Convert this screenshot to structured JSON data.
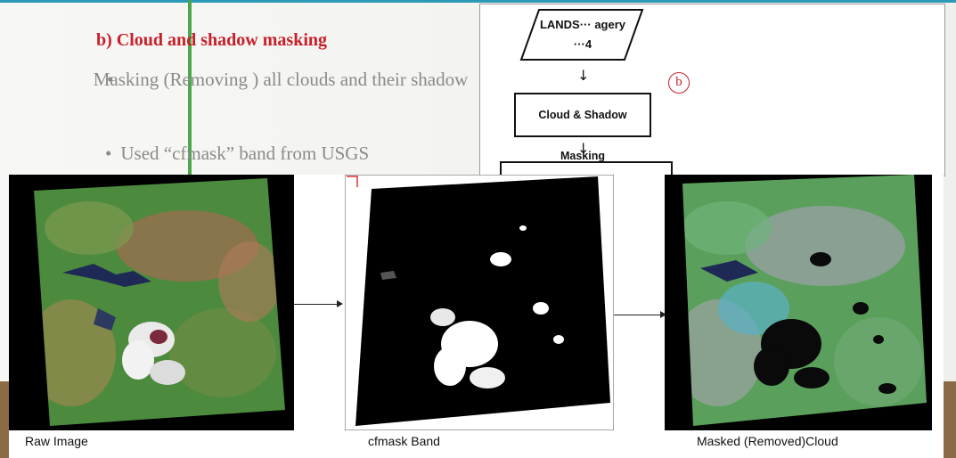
{
  "slide": {
    "heading": "b)   Cloud and shadow masking",
    "bullet_1": "Masking (Removing ) all clouds and their shadow",
    "bullet_2": "Used “cfmask” band from USGS",
    "bullet_glyph": "•"
  },
  "flowchart": {
    "input_label_line1": "LANDS··· agery",
    "input_label_line2": "···4",
    "step_marker": "b",
    "step_label": "Cloud & Shadow Masking",
    "arrow_glyph": "↓"
  },
  "images": {
    "raw_caption": "Raw Image",
    "cfmask_caption": "cfmask Band",
    "masked_caption": "Masked (Removed)Cloud"
  },
  "colors": {
    "heading": "#c8202a",
    "bullet_text": "#8a8a8a",
    "accent_bar": "#4aa84a",
    "top_line": "#2a9ab6"
  }
}
